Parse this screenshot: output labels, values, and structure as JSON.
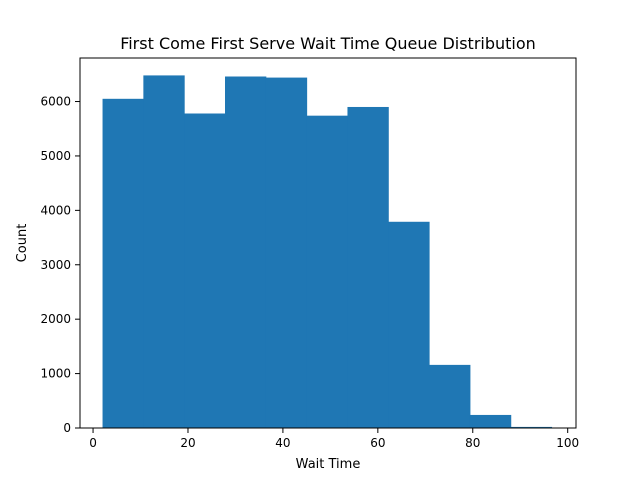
{
  "chart_data": {
    "type": "bar",
    "title": "First Come First Serve Wait Time Queue Distribution",
    "xlabel": "Wait Time",
    "ylabel": "Count",
    "xlim": [
      -2.75,
      101.75
    ],
    "ylim": [
      0,
      6800
    ],
    "xticks": [
      0,
      20,
      40,
      60,
      80,
      100
    ],
    "yticks": [
      0,
      1000,
      2000,
      3000,
      4000,
      5000,
      6000
    ],
    "bin_edges": [
      2,
      10.6,
      19.2,
      27.8,
      36.4,
      45,
      53.6,
      62.2,
      70.8,
      79.4,
      88,
      96.6
    ],
    "values": [
      6050,
      6480,
      5780,
      6460,
      6440,
      5740,
      5900,
      3790,
      1160,
      240,
      20
    ],
    "bar_color": "#1f77b4",
    "grid": false,
    "legend": false
  }
}
